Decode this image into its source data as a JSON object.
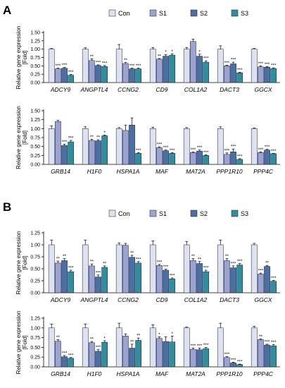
{
  "panel_labels": [
    "A",
    "B"
  ],
  "colors": {
    "Con": "#dde1f2",
    "S1": "#9aa3d6",
    "S2": "#4a6fa5",
    "S3": "#2e8fa3"
  },
  "chart_data": [
    {
      "type": "bar",
      "panel": "A",
      "ylabel": "Relative gene expression",
      "ylabel2": "[Fold]",
      "ylim": [
        0,
        1.5
      ],
      "yticks": [
        "0.00",
        "0.25",
        "0.50",
        "0.75",
        "1.00",
        "1.25",
        "1.50"
      ],
      "legend": [
        "Con",
        "S1",
        "S2",
        "S3"
      ],
      "categories": [
        "ADCY9",
        "ANGPTL4",
        "CCNG2",
        "CD9",
        "COL1A2",
        "DACT3",
        "GGCX"
      ],
      "series": [
        {
          "name": "Con",
          "values": [
            1.0,
            1.0,
            1.0,
            1.0,
            1.0,
            1.0,
            1.0
          ],
          "errors": [
            0.02,
            0.04,
            0.14,
            0.05,
            0.05,
            0.1,
            0.02
          ],
          "sig": [
            "",
            "",
            "",
            "",
            "",
            "",
            ""
          ]
        },
        {
          "name": "S1",
          "values": [
            0.41,
            0.66,
            0.57,
            0.7,
            1.23,
            0.5,
            0.47
          ],
          "errors": [
            0.02,
            0.05,
            0.03,
            0.02,
            0.07,
            0.02,
            0.03
          ],
          "sig": [
            "***",
            "**",
            "**",
            "**",
            "",
            "***",
            "***"
          ]
        },
        {
          "name": "S2",
          "values": [
            0.43,
            0.51,
            0.41,
            0.79,
            0.79,
            0.56,
            0.46
          ],
          "errors": [
            0.02,
            0.02,
            0.02,
            0.05,
            0.06,
            0.05,
            0.02
          ],
          "sig": [
            "***",
            "***",
            "***",
            "*",
            "*",
            "***",
            "***"
          ]
        },
        {
          "name": "S3",
          "values": [
            0.22,
            0.48,
            0.41,
            0.82,
            0.61,
            0.29,
            0.42
          ],
          "errors": [
            0.02,
            0.03,
            0.02,
            0.04,
            0.04,
            0.02,
            0.02
          ],
          "sig": [
            "***",
            "***",
            "***",
            "*",
            "***",
            "***",
            "***"
          ]
        }
      ]
    },
    {
      "type": "bar",
      "panel": "A",
      "ylabel": "Relative gene expression",
      "ylabel2": "[Fold]",
      "ylim": [
        0,
        1.5
      ],
      "yticks": [
        "0.00",
        "0.25",
        "0.50",
        "0.75",
        "1.00",
        "1.25",
        "1.50"
      ],
      "categories": [
        "GRB14",
        "H1F0",
        "HSPA1A",
        "MAF",
        "MAT2A",
        "PPP1R10",
        "PPP4C"
      ],
      "series": [
        {
          "name": "Con",
          "values": [
            1.0,
            1.0,
            1.0,
            1.0,
            1.0,
            1.0,
            1.0
          ],
          "errors": [
            0.08,
            0.05,
            0.03,
            0.04,
            0.03,
            0.05,
            0.02
          ],
          "sig": [
            "",
            "",
            "",
            "",
            "",
            "",
            ""
          ]
        },
        {
          "name": "S1",
          "values": [
            1.2,
            0.67,
            0.95,
            0.47,
            0.33,
            0.28,
            0.33
          ],
          "errors": [
            0.03,
            0.03,
            0.15,
            0.02,
            0.02,
            0.04,
            0.02
          ],
          "sig": [
            "",
            "**",
            "",
            "***",
            "***",
            "***",
            "***"
          ]
        },
        {
          "name": "S2",
          "values": [
            0.53,
            0.66,
            1.1,
            0.38,
            0.37,
            0.35,
            0.4
          ],
          "errors": [
            0.03,
            0.03,
            0.2,
            0.02,
            0.03,
            0.08,
            0.02
          ],
          "sig": [
            "***",
            "**",
            "",
            "***",
            "***",
            "***",
            "***"
          ]
        },
        {
          "name": "S3",
          "values": [
            0.63,
            0.8,
            0.31,
            0.31,
            0.25,
            0.14,
            0.3
          ],
          "errors": [
            0.04,
            0.02,
            0.02,
            0.02,
            0.02,
            0.02,
            0.01
          ],
          "sig": [
            "***",
            "*",
            "***",
            "***",
            "***",
            "***",
            "***"
          ]
        }
      ]
    },
    {
      "type": "bar",
      "panel": "B",
      "ylabel": "Relative gene expression",
      "ylabel2": "[Fold]",
      "ylim": [
        0,
        1.25
      ],
      "yticks": [
        "0.00",
        "0.25",
        "0.50",
        "0.75",
        "1.00",
        "1.25"
      ],
      "legend": [
        "Con",
        "S1",
        "S2",
        "S3"
      ],
      "categories": [
        "ADCY9",
        "ANGPTL4",
        "CCNG2",
        "CD9",
        "COL1A2",
        "DACT3",
        "GGCX"
      ],
      "series": [
        {
          "name": "Con",
          "values": [
            1.0,
            1.0,
            1.0,
            1.0,
            1.0,
            1.0,
            1.0
          ],
          "errors": [
            0.1,
            0.1,
            0.04,
            0.08,
            0.07,
            0.1,
            0.03
          ],
          "sig": [
            "",
            "",
            "",
            "",
            "",
            "",
            ""
          ]
        },
        {
          "name": "S1",
          "values": [
            0.62,
            0.56,
            0.99,
            0.57,
            0.67,
            0.67,
            0.39
          ],
          "errors": [
            0.04,
            0.04,
            0.04,
            0.02,
            0.04,
            0.04,
            0.02
          ],
          "sig": [
            "**",
            "**",
            "",
            "***",
            "**",
            "**",
            "***"
          ]
        },
        {
          "name": "S2",
          "values": [
            0.67,
            0.33,
            0.74,
            0.47,
            0.61,
            0.52,
            0.55
          ],
          "errors": [
            0.04,
            0.04,
            0.04,
            0.02,
            0.04,
            0.04,
            0.02
          ],
          "sig": [
            "**",
            "***",
            "**",
            "***",
            "**",
            "***",
            "**"
          ]
        },
        {
          "name": "S3",
          "values": [
            0.44,
            0.53,
            0.62,
            0.29,
            0.44,
            0.58,
            0.24
          ],
          "errors": [
            0.03,
            0.03,
            0.03,
            0.02,
            0.03,
            0.03,
            0.02
          ],
          "sig": [
            "***",
            "**",
            "***",
            "***",
            "***",
            "***",
            "***"
          ]
        }
      ]
    },
    {
      "type": "bar",
      "panel": "B",
      "ylabel": "Relative gene expression",
      "ylabel2": "[Fold]",
      "ylim": [
        0,
        1.25
      ],
      "yticks": [
        "0.00",
        "0.25",
        "0.50",
        "0.75",
        "1.00",
        "1.25"
      ],
      "categories": [
        "GRB14",
        "H1F0",
        "HSPA1A",
        "MAF",
        "MAT2A",
        "PPP1R10",
        "PPP4C"
      ],
      "series": [
        {
          "name": "Con",
          "values": [
            1.0,
            1.0,
            1.0,
            1.0,
            1.0,
            1.0,
            1.0
          ],
          "errors": [
            0.1,
            0.1,
            0.12,
            0.08,
            0.02,
            0.12,
            0.04
          ],
          "sig": [
            "",
            "",
            "",
            "",
            "",
            "",
            ""
          ]
        },
        {
          "name": "S1",
          "values": [
            0.66,
            0.62,
            0.79,
            0.73,
            0.45,
            0.24,
            0.7
          ],
          "errors": [
            0.04,
            0.03,
            0.05,
            0.04,
            0.03,
            0.02,
            0.02
          ],
          "sig": [
            "**",
            "**",
            "",
            "*",
            "***",
            "***",
            "**"
          ]
        },
        {
          "name": "S2",
          "values": [
            0.26,
            0.4,
            0.48,
            0.65,
            0.44,
            0.1,
            0.56
          ],
          "errors": [
            0.03,
            0.04,
            0.1,
            0.12,
            0.04,
            0.02,
            0.02
          ],
          "sig": [
            "***",
            "***",
            "**",
            "",
            "***",
            "***",
            "***"
          ]
        },
        {
          "name": "S3",
          "values": [
            0.22,
            0.63,
            0.68,
            0.64,
            0.47,
            0.06,
            0.54
          ],
          "errors": [
            0.02,
            0.04,
            0.06,
            0.15,
            0.03,
            0.01,
            0.03
          ],
          "sig": [
            "***",
            "*",
            "**",
            "*",
            "***",
            "***",
            "***"
          ]
        }
      ]
    }
  ]
}
